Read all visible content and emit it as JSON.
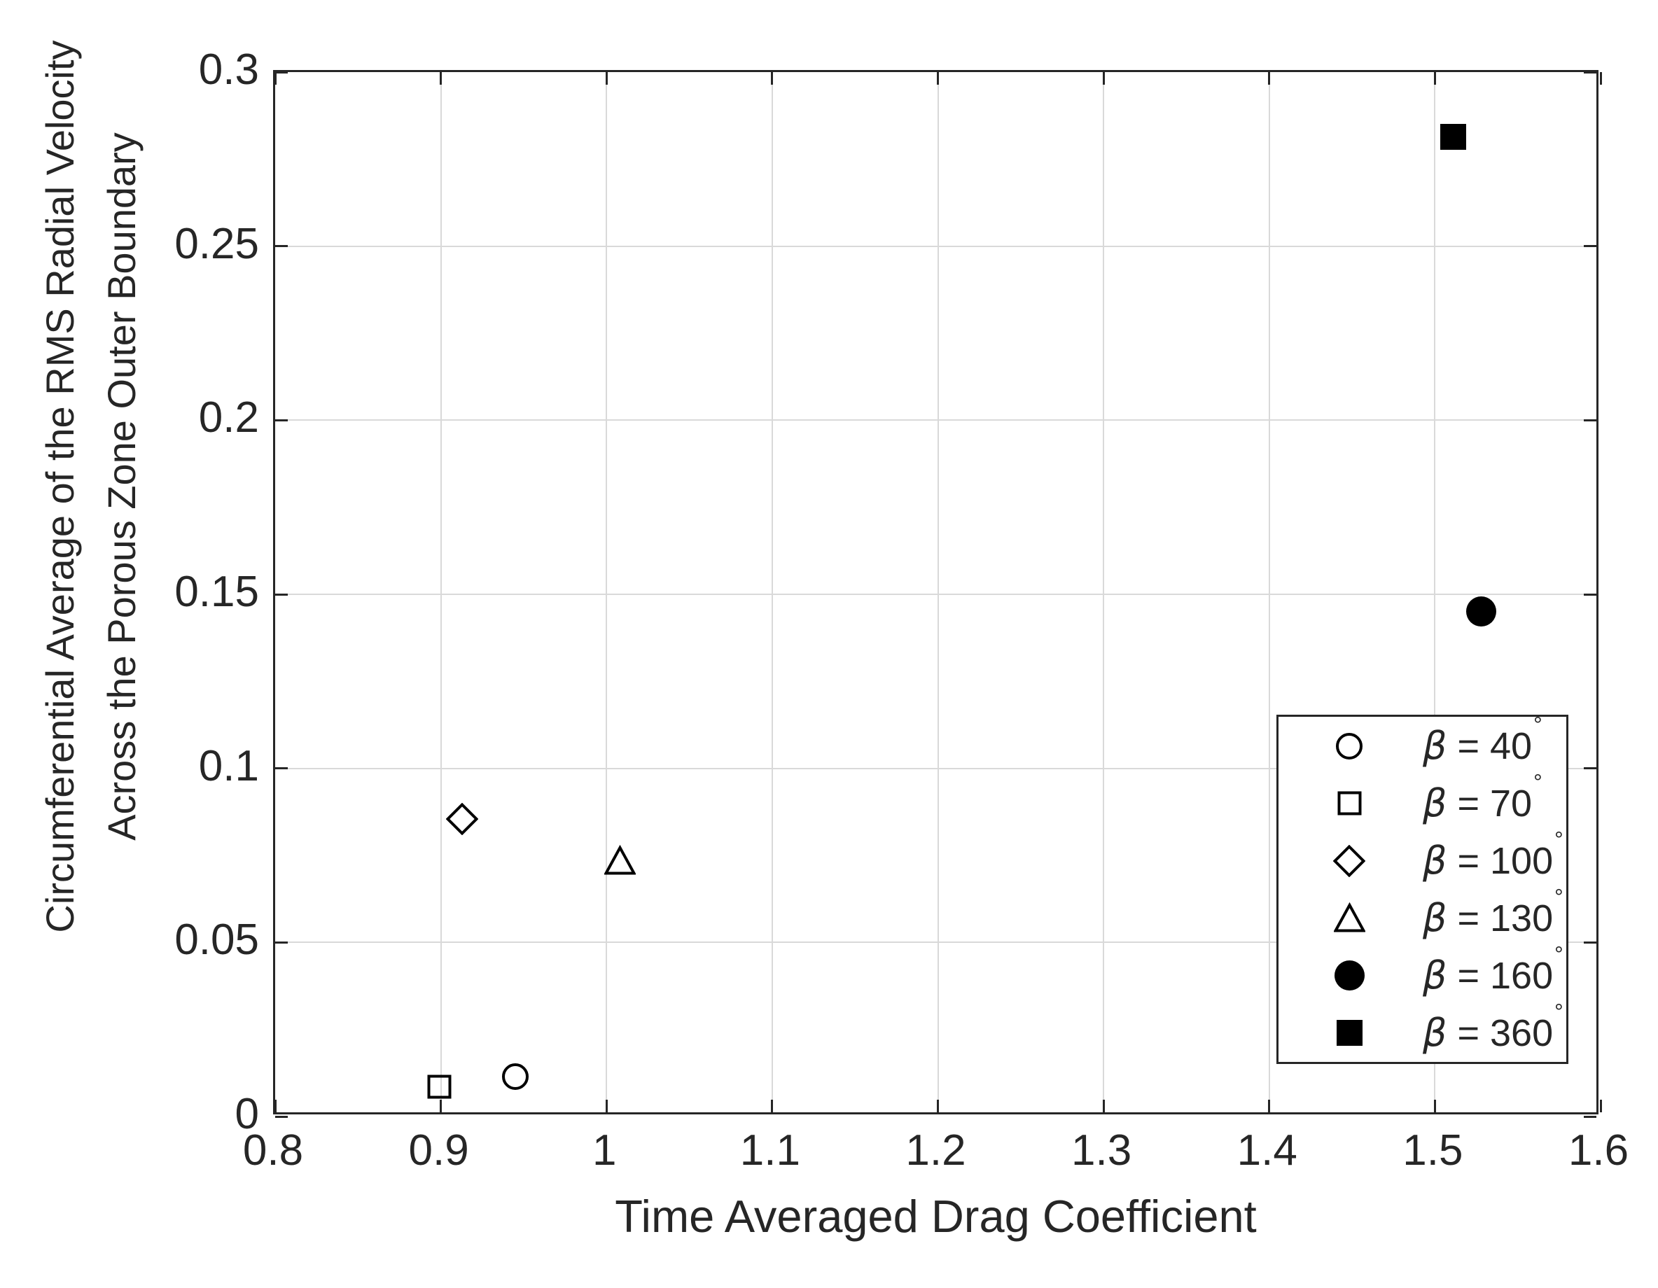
{
  "colors": {
    "background": "#ffffff",
    "axis": "#262626",
    "text": "#262626",
    "grid": "#d9d9d9",
    "marker": "#000000",
    "legend_border": "#262626",
    "legend_background": "#ffffff"
  },
  "chart_data": {
    "type": "scatter",
    "xlabel": "Time Averaged Drag Coefficient",
    "ylabel_lines": [
      "Circumferential Average of the RMS Radial Velocity",
      "Across the Porous Zone Outer Boundary"
    ],
    "xlim": [
      0.8,
      1.6
    ],
    "ylim": [
      0,
      0.3
    ],
    "x_ticks": [
      0.8,
      0.9,
      1.0,
      1.1,
      1.2,
      1.3,
      1.4,
      1.5,
      1.6
    ],
    "x_tick_labels": [
      "0.8",
      "0.9",
      "1",
      "1.1",
      "1.2",
      "1.3",
      "1.4",
      "1.5",
      "1.6"
    ],
    "y_ticks": [
      0,
      0.05,
      0.1,
      0.15,
      0.2,
      0.25,
      0.3
    ],
    "y_tick_labels": [
      "0",
      "0.05",
      "0.1",
      "0.15",
      "0.2",
      "0.25",
      "0.3"
    ],
    "grid": true,
    "legend_position": "lower-right-inset",
    "series": [
      {
        "name": "β = 40°",
        "marker": "circle-open",
        "x": 0.945,
        "y": 0.0115
      },
      {
        "name": "β = 70°",
        "marker": "square-open",
        "x": 0.899,
        "y": 0.0085
      },
      {
        "name": "β = 100°",
        "marker": "diamond-open",
        "x": 0.913,
        "y": 0.0855
      },
      {
        "name": "β = 130°",
        "marker": "triangle-open",
        "x": 1.008,
        "y": 0.0735
      },
      {
        "name": "β = 160°",
        "marker": "circle-filled",
        "x": 1.528,
        "y": 0.145
      },
      {
        "name": "β = 360°",
        "marker": "square-filled",
        "x": 1.511,
        "y": 0.2815
      }
    ]
  }
}
